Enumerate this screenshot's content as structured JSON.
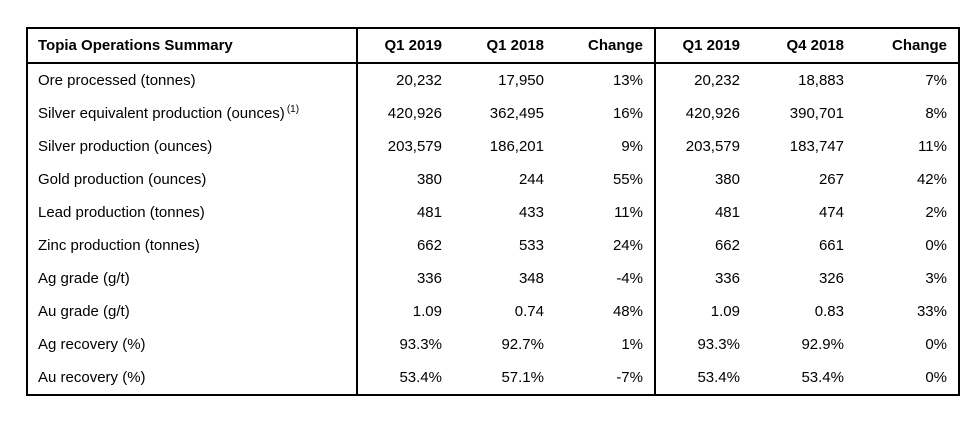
{
  "chart_data": {
    "type": "table",
    "title": "Topia Operations Summary",
    "columns": [
      "Q1 2019",
      "Q1 2018",
      "Change",
      "Q1 2019",
      "Q4 2018",
      "Change"
    ],
    "rows": [
      {
        "label": "Ore processed (tonnes)",
        "sup": "",
        "values": [
          "20,232",
          "17,950",
          "13%",
          "20,232",
          "18,883",
          "7%"
        ]
      },
      {
        "label": "Silver equivalent production (ounces)",
        "sup": "(1)",
        "values": [
          "420,926",
          "362,495",
          "16%",
          "420,926",
          "390,701",
          "8%"
        ]
      },
      {
        "label": "Silver production (ounces)",
        "sup": "",
        "values": [
          "203,579",
          "186,201",
          "9%",
          "203,579",
          "183,747",
          "11%"
        ]
      },
      {
        "label": "Gold production (ounces)",
        "sup": "",
        "values": [
          "380",
          "244",
          "55%",
          "380",
          "267",
          "42%"
        ]
      },
      {
        "label": "Lead production (tonnes)",
        "sup": "",
        "values": [
          "481",
          "433",
          "11%",
          "481",
          "474",
          "2%"
        ]
      },
      {
        "label": "Zinc production (tonnes)",
        "sup": "",
        "values": [
          "662",
          "533",
          "24%",
          "662",
          "661",
          "0%"
        ]
      },
      {
        "label": "Ag grade (g/t)",
        "sup": "",
        "values": [
          "336",
          "348",
          "-4%",
          "336",
          "326",
          "3%"
        ]
      },
      {
        "label": "Au grade (g/t)",
        "sup": "",
        "values": [
          "1.09",
          "0.74",
          "48%",
          "1.09",
          "0.83",
          "33%"
        ]
      },
      {
        "label": "Ag recovery (%)",
        "sup": "",
        "values": [
          "93.3%",
          "92.7%",
          "1%",
          "93.3%",
          "92.9%",
          "0%"
        ]
      },
      {
        "label": "Au recovery (%)",
        "sup": "",
        "values": [
          "53.4%",
          "57.1%",
          "-7%",
          "53.4%",
          "53.4%",
          "0%"
        ]
      }
    ],
    "layout": {
      "grid": "outer border, header underline, vertical dividers after label column and after first Change column",
      "value_alignment": "right",
      "label_alignment": "left"
    }
  },
  "colors": {
    "border": "#000000",
    "text": "#000000",
    "background": "#ffffff"
  }
}
